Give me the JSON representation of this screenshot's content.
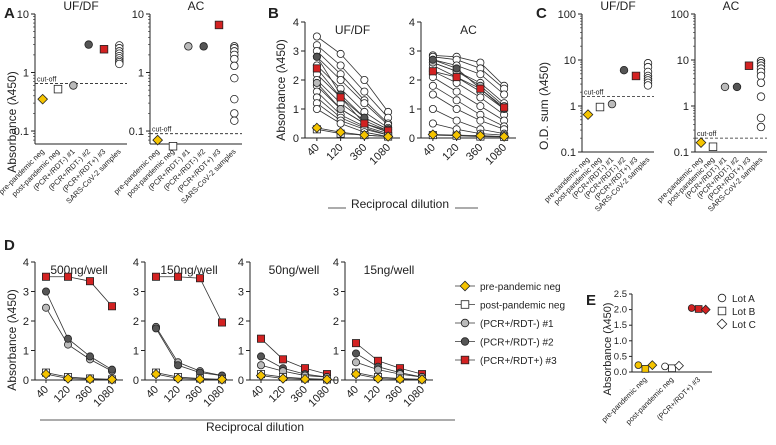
{
  "chart_data": {
    "type": "scatter",
    "groups": [
      "pre-pandemic neg",
      "post-pandemic neg",
      "(PCR+/RDT-) #1",
      "(PCR+/RDT-) #2",
      "(PCR+/RDT+) #3",
      "SARS-CoV-2 samples"
    ],
    "styles": {
      "pre-pandemic neg": {
        "shape": "diamond",
        "fill": "#f5c400"
      },
      "post-pandemic neg": {
        "shape": "square",
        "fill": "#ffffff"
      },
      "(PCR+/RDT-) #1": {
        "shape": "circle",
        "fill": "#bbbbbb"
      },
      "(PCR+/RDT-) #2": {
        "shape": "circle",
        "fill": "#555555"
      },
      "(PCR+/RDT+) #3": {
        "shape": "square",
        "fill": "#d32222"
      },
      "SARS-CoV-2 samples": {
        "shape": "circle",
        "fill": "#ffffff"
      }
    },
    "panelA": {
      "letter": "A",
      "ylabel": "Absorbance (λ450)",
      "scale": "log",
      "yticks": [
        "0.1",
        "1",
        "10"
      ],
      "cutoff_label": "cut-off",
      "subplots": [
        {
          "title": "UF/DF",
          "ylim": [
            0.06,
            10
          ],
          "cutoff": 0.65,
          "points": [
            [
              0,
              [
                0.35
              ]
            ],
            [
              1,
              [
                0.52
              ]
            ],
            [
              2,
              [
                0.6
              ]
            ],
            [
              3,
              [
                3.0
              ]
            ],
            [
              4,
              [
                2.5
              ]
            ],
            [
              5,
              [
                2.9,
                2.6,
                2.3,
                2.1,
                1.9,
                1.75,
                1.6,
                1.5,
                1.4
              ]
            ]
          ]
        },
        {
          "title": "AC",
          "ylim": [
            0.06,
            10
          ],
          "cutoff": 0.09,
          "points": [
            [
              0,
              [
                0.07
              ]
            ],
            [
              1,
              [
                0.055
              ]
            ],
            [
              2,
              [
                2.8
              ]
            ],
            [
              3,
              [
                2.8
              ]
            ],
            [
              4,
              [
                6.5
              ]
            ],
            [
              5,
              [
                2.8,
                2.6,
                2.3,
                2.0,
                1.7,
                1.3,
                0.8,
                0.35,
                0.2,
                0.15
              ]
            ]
          ]
        }
      ]
    },
    "panelB": {
      "letter": "B",
      "ylabel": "Absorbance (λ450)",
      "xlabel": "Reciprocal dilution",
      "x": [
        "40",
        "120",
        "360",
        "1080"
      ],
      "yticks": [
        "0",
        "1",
        "2",
        "3",
        "4"
      ],
      "ylim": [
        0,
        4
      ],
      "subplots": [
        {
          "title": "UF/DF",
          "series": [
            {
              "group": "SARS-CoV-2 samples",
              "values": [
                3.5,
                2.9,
                2.0,
                0.9
              ]
            },
            {
              "group": "SARS-CoV-2 samples",
              "values": [
                3.2,
                2.5,
                1.6,
                0.7
              ]
            },
            {
              "group": "SARS-CoV-2 samples",
              "values": [
                3.0,
                2.2,
                1.3,
                0.5
              ]
            },
            {
              "group": "SARS-CoV-2 samples",
              "values": [
                2.8,
                2.0,
                1.2,
                0.45
              ]
            },
            {
              "group": "SARS-CoV-2 samples",
              "values": [
                2.5,
                1.7,
                0.9,
                0.35
              ]
            },
            {
              "group": "SARS-CoV-2 samples",
              "values": [
                2.2,
                1.4,
                0.7,
                0.3
              ]
            },
            {
              "group": "SARS-CoV-2 samples",
              "values": [
                2.0,
                1.2,
                0.6,
                0.25
              ]
            },
            {
              "group": "SARS-CoV-2 samples",
              "values": [
                1.8,
                1.0,
                0.5,
                0.2
              ]
            },
            {
              "group": "SARS-CoV-2 samples",
              "values": [
                1.6,
                0.8,
                0.4,
                0.15
              ]
            },
            {
              "group": "SARS-CoV-2 samples",
              "values": [
                1.4,
                0.7,
                0.35,
                0.1
              ]
            },
            {
              "group": "SARS-CoV-2 samples",
              "values": [
                1.2,
                0.6,
                0.3,
                0.1
              ]
            },
            {
              "group": "SARS-CoV-2 samples",
              "values": [
                1.0,
                0.5,
                0.2,
                0.05
              ]
            },
            {
              "group": "(PCR+/RDT-) #1",
              "values": [
                1.9,
                1.0,
                0.5,
                0.2
              ]
            },
            {
              "group": "(PCR+/RDT-) #2",
              "values": [
                2.8,
                1.5,
                0.7,
                0.3
              ]
            },
            {
              "group": "(PCR+/RDT+) #3",
              "values": [
                2.4,
                1.4,
                0.5,
                0.25
              ]
            },
            {
              "group": "post-pandemic neg",
              "values": [
                0.3,
                0.15,
                0.1,
                0.05
              ]
            },
            {
              "group": "pre-pandemic neg",
              "values": [
                0.35,
                0.2,
                0.1,
                0.05
              ]
            }
          ]
        },
        {
          "title": "AC",
          "series": [
            {
              "group": "SARS-CoV-2 samples",
              "values": [
                2.85,
                2.8,
                2.6,
                1.8
              ]
            },
            {
              "group": "SARS-CoV-2 samples",
              "values": [
                2.8,
                2.7,
                2.4,
                1.7
              ]
            },
            {
              "group": "SARS-CoV-2 samples",
              "values": [
                2.7,
                2.5,
                2.2,
                1.5
              ]
            },
            {
              "group": "SARS-CoV-2 samples",
              "values": [
                2.6,
                2.3,
                1.9,
                1.2
              ]
            },
            {
              "group": "SARS-CoV-2 samples",
              "values": [
                2.5,
                2.1,
                1.6,
                1.0
              ]
            },
            {
              "group": "SARS-CoV-2 samples",
              "values": [
                2.3,
                1.9,
                1.4,
                0.8
              ]
            },
            {
              "group": "SARS-CoV-2 samples",
              "values": [
                2.1,
                1.6,
                1.1,
                0.6
              ]
            },
            {
              "group": "SARS-CoV-2 samples",
              "values": [
                1.8,
                1.3,
                0.8,
                0.4
              ]
            },
            {
              "group": "SARS-CoV-2 samples",
              "values": [
                1.5,
                1.0,
                0.6,
                0.3
              ]
            },
            {
              "group": "SARS-CoV-2 samples",
              "values": [
                1.0,
                0.6,
                0.3,
                0.15
              ]
            },
            {
              "group": "SARS-CoV-2 samples",
              "values": [
                0.5,
                0.3,
                0.15,
                0.1
              ]
            },
            {
              "group": "(PCR+/RDT-) #1",
              "values": [
                2.6,
                2.3,
                1.8,
                1.1
              ]
            },
            {
              "group": "(PCR+/RDT-) #2",
              "values": [
                2.7,
                2.4,
                1.7,
                1.0
              ]
            },
            {
              "group": "(PCR+/RDT+) #3",
              "values": [
                2.3,
                2.1,
                1.7,
                1.05
              ]
            },
            {
              "group": "post-pandemic neg",
              "values": [
                0.1,
                0.08,
                0.05,
                0.04
              ]
            },
            {
              "group": "pre-pandemic neg",
              "values": [
                0.12,
                0.1,
                0.08,
                0.05
              ]
            }
          ]
        }
      ]
    },
    "panelC": {
      "letter": "C",
      "ylabel": "O.D. sum (λ450)",
      "scale": "log",
      "yticks": [
        "0.1",
        "1",
        "10",
        "100"
      ],
      "cutoff_label": "cut-off",
      "subplots": [
        {
          "title": "UF/DF",
          "ylim": [
            0.1,
            100
          ],
          "cutoff": 1.6,
          "points": [
            [
              0,
              [
                0.65
              ]
            ],
            [
              1,
              [
                0.95
              ]
            ],
            [
              2,
              [
                1.1
              ]
            ],
            [
              3,
              [
                6.0
              ]
            ],
            [
              4,
              [
                4.5
              ]
            ],
            [
              5,
              [
                8.5,
                7.0,
                5.5,
                4.5,
                4.0,
                3.6,
                3.2,
                2.8
              ]
            ]
          ]
        },
        {
          "title": "AC",
          "ylim": [
            0.1,
            100
          ],
          "cutoff": 0.2,
          "points": [
            [
              0,
              [
                0.16
              ]
            ],
            [
              1,
              [
                0.13
              ]
            ],
            [
              2,
              [
                2.6
              ]
            ],
            [
              3,
              [
                2.6
              ]
            ],
            [
              4,
              [
                7.5
              ]
            ],
            [
              5,
              [
                9.5,
                8.5,
                7.5,
                6.5,
                5.5,
                4.5,
                3.2,
                1.6,
                0.55,
                0.35
              ]
            ]
          ]
        }
      ]
    },
    "panelD": {
      "letter": "D",
      "ylabel": "Absorbance (λ450)",
      "xlabel": "Reciprocal dilution",
      "x": [
        "40",
        "120",
        "360",
        "1080"
      ],
      "yticks": [
        "0",
        "1",
        "2",
        "3",
        "4"
      ],
      "ylim": [
        0,
        4
      ],
      "subplots": [
        {
          "title": "500ng/well",
          "series": [
            {
              "group": "(PCR+/RDT+) #3",
              "values": [
                3.5,
                3.5,
                3.35,
                2.5
              ]
            },
            {
              "group": "(PCR+/RDT-) #1",
              "values": [
                2.45,
                1.2,
                0.7,
                0.3
              ]
            },
            {
              "group": "(PCR+/RDT-) #2",
              "values": [
                3.0,
                1.4,
                0.8,
                0.35
              ]
            },
            {
              "group": "post-pandemic neg",
              "values": [
                0.25,
                0.1,
                0.05,
                0.02
              ]
            },
            {
              "group": "pre-pandemic neg",
              "values": [
                0.2,
                0.05,
                0.03,
                0.02
              ]
            }
          ]
        },
        {
          "title": "150ng/well",
          "series": [
            {
              "group": "(PCR+/RDT+) #3",
              "values": [
                3.5,
                3.5,
                3.45,
                1.95
              ]
            },
            {
              "group": "(PCR+/RDT-) #1",
              "values": [
                1.8,
                0.6,
                0.3,
                0.15
              ]
            },
            {
              "group": "(PCR+/RDT-) #2",
              "values": [
                1.75,
                0.5,
                0.25,
                0.15
              ]
            },
            {
              "group": "post-pandemic neg",
              "values": [
                0.25,
                0.1,
                0.05,
                0.02
              ]
            },
            {
              "group": "pre-pandemic neg",
              "values": [
                0.2,
                0.05,
                0.03,
                0.02
              ]
            }
          ]
        },
        {
          "title": "50ng/well",
          "series": [
            {
              "group": "(PCR+/RDT+) #3",
              "values": [
                1.4,
                0.7,
                0.4,
                0.2
              ]
            },
            {
              "group": "(PCR+/RDT-) #2",
              "values": [
                0.8,
                0.4,
                0.2,
                0.1
              ]
            },
            {
              "group": "(PCR+/RDT-) #1",
              "values": [
                0.5,
                0.3,
                0.15,
                0.1
              ]
            },
            {
              "group": "post-pandemic neg",
              "values": [
                0.2,
                0.1,
                0.05,
                0.02
              ]
            },
            {
              "group": "pre-pandemic neg",
              "values": [
                0.15,
                0.05,
                0.03,
                0.02
              ]
            }
          ]
        },
        {
          "title": "15ng/well",
          "series": [
            {
              "group": "(PCR+/RDT+) #3",
              "values": [
                1.25,
                0.65,
                0.4,
                0.2
              ]
            },
            {
              "group": "(PCR+/RDT-) #2",
              "values": [
                0.9,
                0.45,
                0.25,
                0.1
              ]
            },
            {
              "group": "(PCR+/RDT-) #1",
              "values": [
                0.6,
                0.35,
                0.2,
                0.1
              ]
            },
            {
              "group": "post-pandemic neg",
              "values": [
                0.25,
                0.1,
                0.05,
                0.02
              ]
            },
            {
              "group": "pre-pandemic neg",
              "values": [
                0.2,
                0.05,
                0.03,
                0.02
              ]
            }
          ]
        }
      ],
      "legend": [
        "pre-pandemic neg",
        "post-pandemic neg",
        "(PCR+/RDT-) #1",
        "(PCR+/RDT-) #2",
        "(PCR+/RDT+) #3"
      ]
    },
    "panelE": {
      "letter": "E",
      "ylabel": "Absorbance (λ450)",
      "ylim": [
        0,
        2.5
      ],
      "yticks": [
        "0.0",
        "0.5",
        "1.0",
        "1.5",
        "2.0",
        "2.5"
      ],
      "categories": [
        "pre-pandemic neg",
        "post-pandemic neg",
        "(PCR+/RDT+) #3"
      ],
      "lots": [
        {
          "name": "Lot A",
          "shape": "circle",
          "values": [
            0.22,
            0.18,
            2.05
          ]
        },
        {
          "name": "Lot B",
          "shape": "square",
          "values": [
            0.1,
            0.12,
            2.02
          ]
        },
        {
          "name": "Lot C",
          "shape": "diamond",
          "values": [
            0.22,
            0.2,
            2.0
          ]
        }
      ],
      "fills": [
        "#f5c400",
        "#ffffff",
        "#d32222"
      ]
    }
  }
}
